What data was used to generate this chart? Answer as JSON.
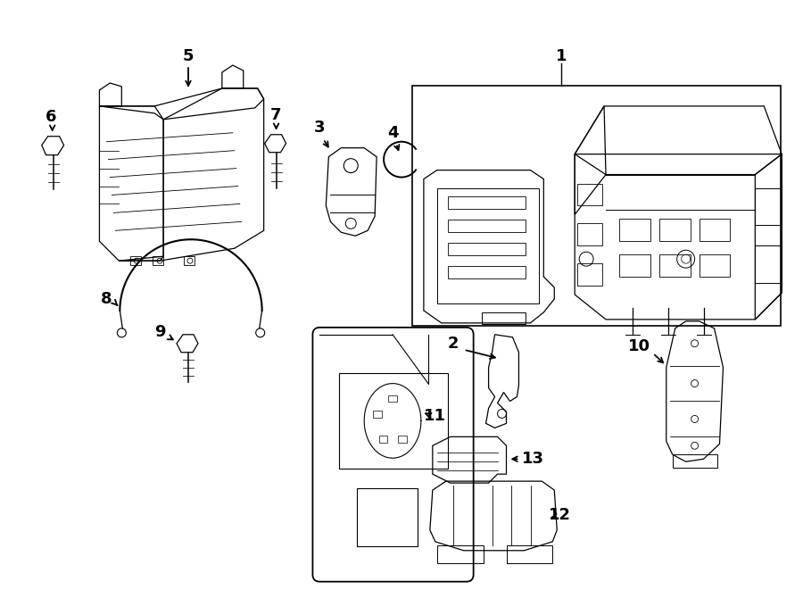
{
  "background_color": "#ffffff",
  "line_color": "#000000",
  "fig_width": 9.0,
  "fig_height": 6.61,
  "lw": 0.9
}
